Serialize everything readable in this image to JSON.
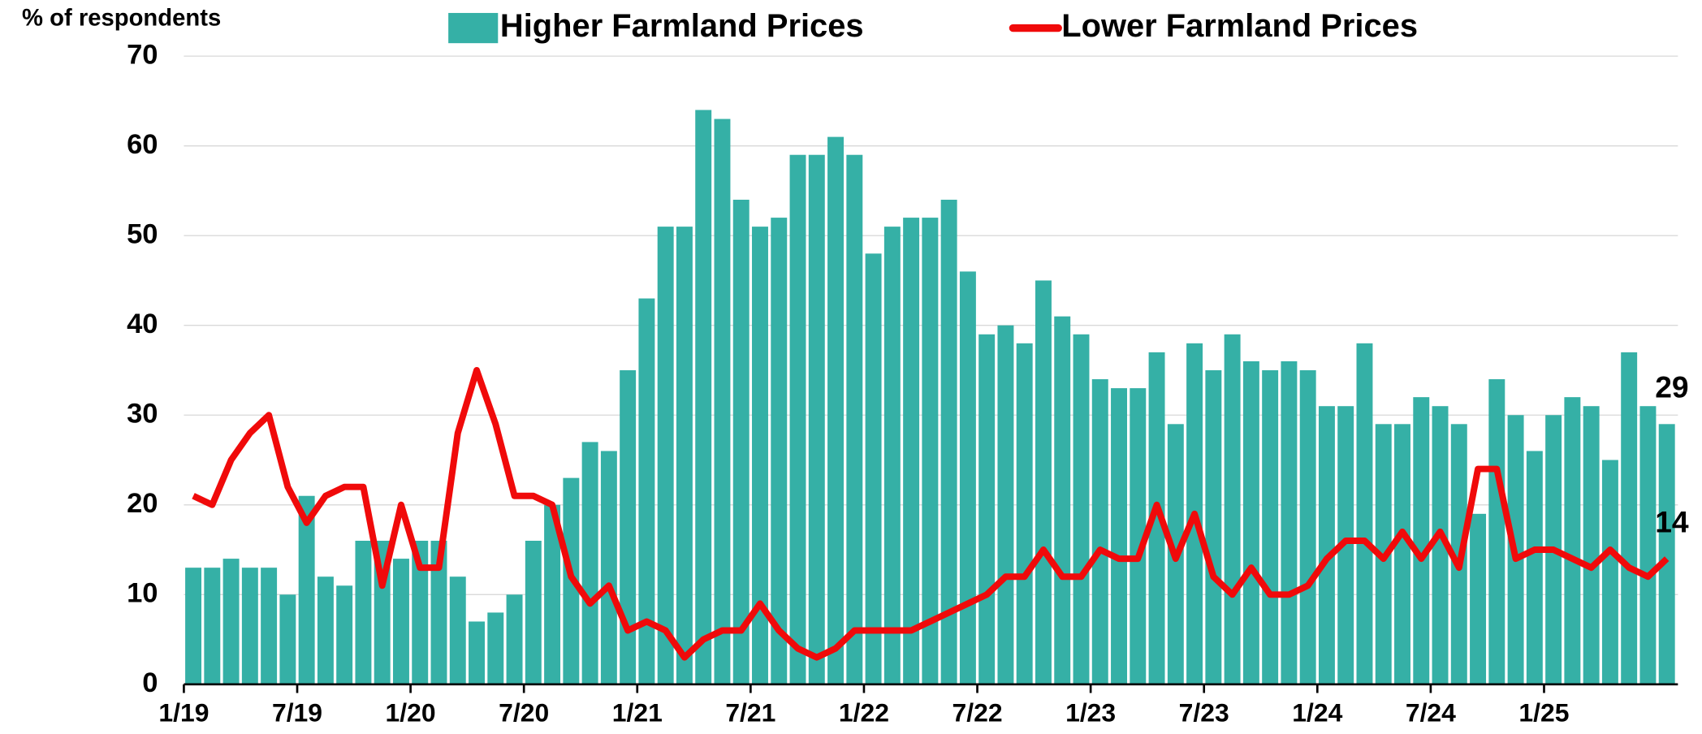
{
  "chart_data": {
    "type": "bar-line",
    "y_label": "% of respondents",
    "categories": [
      "1/19",
      null,
      null,
      null,
      null,
      null,
      "7/19",
      null,
      null,
      null,
      null,
      null,
      "1/20",
      null,
      null,
      null,
      null,
      null,
      "7/20",
      null,
      null,
      null,
      null,
      null,
      "1/21",
      null,
      null,
      null,
      null,
      null,
      "7/21",
      null,
      null,
      null,
      null,
      null,
      "1/22",
      null,
      null,
      null,
      null,
      null,
      "7/22",
      null,
      null,
      null,
      null,
      null,
      "1/23",
      null,
      null,
      null,
      null,
      null,
      "7/23",
      null,
      null,
      null,
      null,
      null,
      "1/24",
      null,
      null,
      null,
      null,
      null,
      "7/24",
      null,
      null,
      null,
      null,
      null,
      "1/25",
      null,
      null,
      null,
      null,
      null,
      null
    ],
    "series": [
      {
        "name": "Higher Farmland Prices",
        "type": "bar",
        "color": "#35b0a6",
        "values": [
          13,
          13,
          14,
          13,
          13,
          10,
          21,
          12,
          11,
          16,
          16,
          14,
          16,
          16,
          12,
          7,
          8,
          10,
          16,
          20,
          23,
          27,
          26,
          35,
          43,
          51,
          51,
          64,
          63,
          54,
          51,
          52,
          59,
          59,
          61,
          59,
          48,
          51,
          52,
          52,
          54,
          46,
          39,
          40,
          38,
          45,
          41,
          39,
          34,
          33,
          33,
          37,
          29,
          38,
          35,
          39,
          36,
          35,
          36,
          35,
          31,
          31,
          38,
          29,
          29,
          32,
          31,
          29,
          19,
          34,
          30,
          26,
          30,
          32,
          31,
          25,
          37,
          31,
          29
        ]
      },
      {
        "name": "Lower Farmland Prices",
        "type": "line",
        "color": "#f00a0a",
        "values": [
          21,
          20,
          25,
          28,
          30,
          22,
          18,
          21,
          22,
          22,
          11,
          20,
          13,
          13,
          28,
          35,
          29,
          21,
          21,
          20,
          12,
          9,
          11,
          6,
          7,
          6,
          3,
          5,
          6,
          6,
          9,
          6,
          4,
          3,
          4,
          6,
          6,
          6,
          6,
          7,
          8,
          9,
          10,
          12,
          12,
          15,
          12,
          12,
          15,
          14,
          14,
          20,
          14,
          19,
          12,
          10,
          13,
          10,
          10,
          11,
          14,
          16,
          16,
          14,
          17,
          14,
          17,
          13,
          24,
          24,
          14,
          15,
          15,
          14,
          13,
          15,
          13,
          12,
          14
        ]
      }
    ],
    "ylim": [
      0,
      70
    ],
    "yticks": [
      0,
      10,
      20,
      30,
      40,
      50,
      60,
      70
    ],
    "grid": true,
    "legend": "top"
  }
}
